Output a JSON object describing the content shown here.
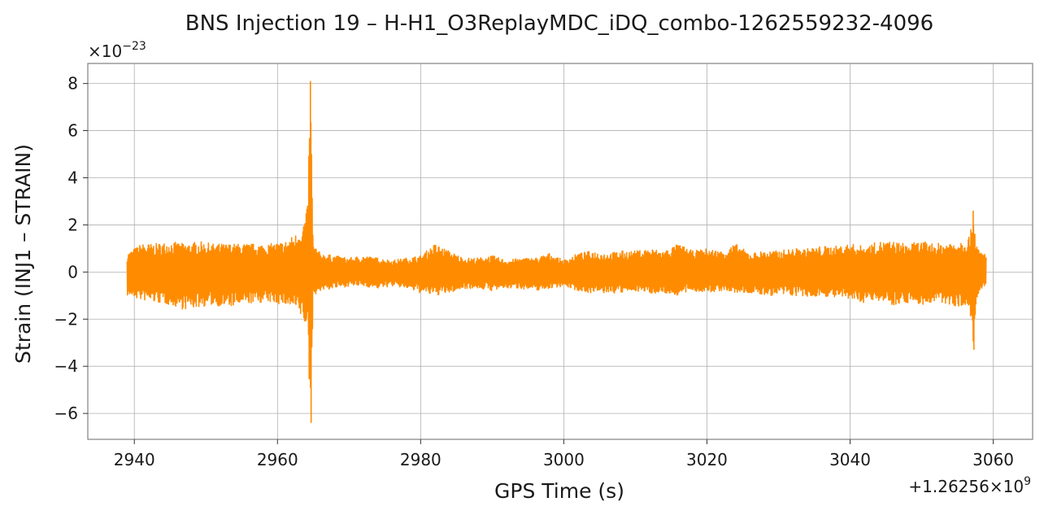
{
  "chart_data": {
    "type": "line",
    "title": "BNS Injection 19 – H-H1_O3ReplayMDC_iDQ_combo-1262559232-4096",
    "xlabel": "GPS Time (s)",
    "ylabel": "Strain (INJ1 – STRAIN)",
    "x_offset_label": {
      "prefix": "+1.26256",
      "times": "×",
      "base": "10",
      "exp": "9"
    },
    "y_scale_label": {
      "times": "×",
      "base": "10",
      "exp": "−23"
    },
    "xlim": [
      2933.5,
      3065.5
    ],
    "ylim": [
      -7.1,
      8.85
    ],
    "xticks": [
      2940,
      2960,
      2980,
      3000,
      3020,
      3040,
      3060
    ],
    "yticks": [
      -6,
      -4,
      -2,
      0,
      2,
      4,
      6,
      8
    ],
    "xtick_labels": [
      "2940",
      "2960",
      "2980",
      "3000",
      "3020",
      "3040",
      "3060"
    ],
    "ytick_labels": [
      "−6",
      "−4",
      "−2",
      "0",
      "2",
      "4",
      "6",
      "8"
    ],
    "grid": true,
    "line_color": "#ff8c00",
    "series": [
      {
        "envelope": {
          "x": [
            2939.0,
            2941.0,
            2943.0,
            2945.0,
            2947.0,
            2949.0,
            2951.0,
            2953.0,
            2955.0,
            2957.0,
            2959.0,
            2961.0,
            2962.5,
            2963.5,
            2964.2,
            2964.6,
            2965.0,
            2966.0,
            2968.0,
            2970.0,
            2972.0,
            2974.0,
            2976.0,
            2978.0,
            2980.0,
            2982.0,
            2984.0,
            2986.0,
            2988.0,
            2990.0,
            2992.0,
            2994.0,
            2996.0,
            2998.0,
            3000.0,
            3002.0,
            3004.0,
            3006.0,
            3008.0,
            3010.0,
            3012.0,
            3014.0,
            3016.0,
            3018.0,
            3020.0,
            3022.0,
            3024.0,
            3026.0,
            3028.0,
            3030.0,
            3032.0,
            3034.0,
            3036.0,
            3038.0,
            3040.0,
            3042.0,
            3044.0,
            3046.0,
            3048.0,
            3050.0,
            3052.0,
            3054.0,
            3056.0,
            3056.8,
            3057.2,
            3057.6,
            3058.0,
            3059.0
          ],
          "upper": [
            0.8,
            1.2,
            1.2,
            1.3,
            1.2,
            1.3,
            1.2,
            1.2,
            1.2,
            1.2,
            1.2,
            1.3,
            1.6,
            2.0,
            2.8,
            8.1,
            1.2,
            0.8,
            0.7,
            0.6,
            0.7,
            0.6,
            0.5,
            0.6,
            0.7,
            1.2,
            0.9,
            0.6,
            0.6,
            0.7,
            0.5,
            0.6,
            0.6,
            0.8,
            0.5,
            0.8,
            0.9,
            0.8,
            0.9,
            0.9,
            1.0,
            0.9,
            1.2,
            0.9,
            1.0,
            0.9,
            1.2,
            0.8,
            0.9,
            0.9,
            1.0,
            1.0,
            1.1,
            1.1,
            1.2,
            1.1,
            1.3,
            1.3,
            1.2,
            1.3,
            1.2,
            1.3,
            1.4,
            1.6,
            2.6,
            1.4,
            0.9,
            0.8
          ],
          "lower": [
            -1.0,
            -1.2,
            -1.3,
            -1.4,
            -1.6,
            -1.5,
            -1.4,
            -1.5,
            -1.4,
            -1.3,
            -1.3,
            -1.4,
            -1.6,
            -2.0,
            -2.5,
            -6.4,
            -1.0,
            -0.8,
            -0.7,
            -0.6,
            -0.6,
            -0.7,
            -0.6,
            -0.7,
            -0.9,
            -1.0,
            -0.9,
            -0.7,
            -0.7,
            -0.8,
            -0.7,
            -0.7,
            -0.8,
            -0.7,
            -0.6,
            -0.8,
            -0.9,
            -0.9,
            -0.9,
            -0.8,
            -0.9,
            -0.9,
            -1.0,
            -0.8,
            -0.9,
            -0.8,
            -0.9,
            -0.9,
            -1.0,
            -1.0,
            -1.0,
            -1.1,
            -1.0,
            -1.1,
            -1.2,
            -1.3,
            -1.2,
            -1.4,
            -1.3,
            -1.4,
            -1.3,
            -1.4,
            -1.5,
            -1.8,
            -3.3,
            -1.5,
            -0.9,
            -0.6
          ]
        }
      }
    ]
  }
}
